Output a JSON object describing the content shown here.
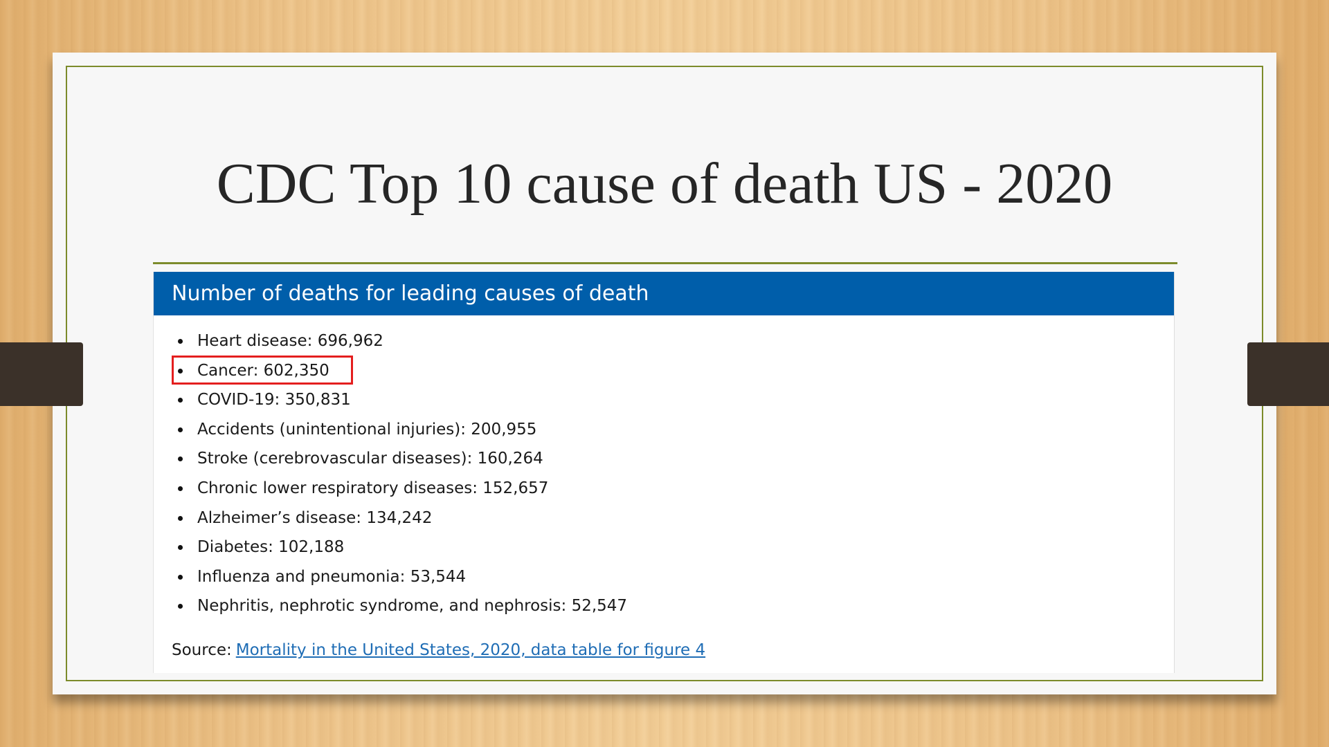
{
  "slide": {
    "title": "CDC Top 10 cause of death US - 2020"
  },
  "card": {
    "header": "Number of deaths for leading causes of death",
    "items": [
      {
        "label": "Heart disease: 696,962"
      },
      {
        "label": "Cancer: 602,350",
        "highlighted": true
      },
      {
        "label": "COVID-19: 350,831"
      },
      {
        "label": "Accidents (unintentional injuries): 200,955"
      },
      {
        "label": "Stroke (cerebrovascular diseases): 160,264"
      },
      {
        "label": "Chronic lower respiratory diseases: 152,657"
      },
      {
        "label": "Alzheimer’s disease: 134,242"
      },
      {
        "label": "Diabetes: 102,188"
      },
      {
        "label": "Influenza and pneumonia: 53,544"
      },
      {
        "label": "Nephritis, nephrotic syndrome, and nephrosis: 52,547"
      }
    ],
    "source_label": "Source:",
    "source_link": "Mortality in the United States, 2020, data table for figure 4"
  },
  "colors": {
    "header_bg": "#005eaa",
    "frame": "#7c8b2b",
    "highlight": "#e41e1e",
    "link": "#1f6db5"
  }
}
